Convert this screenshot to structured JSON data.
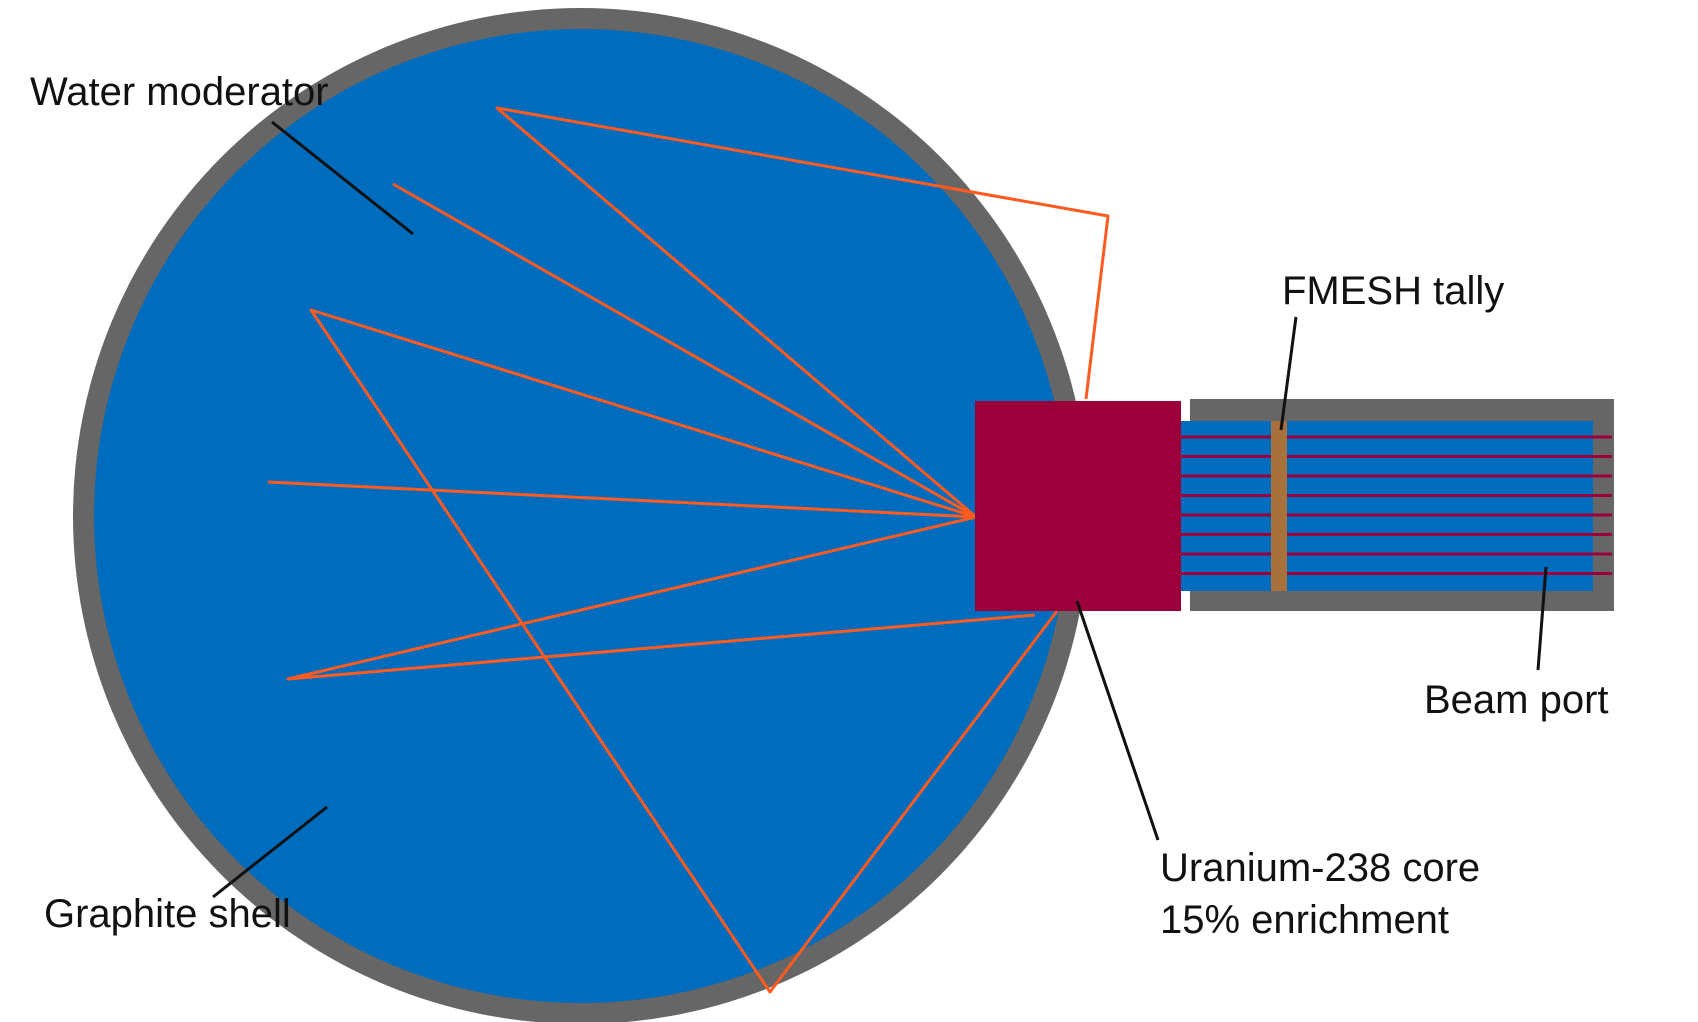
{
  "labels": {
    "water_moderator": "Water moderator",
    "fmesh_tally": "FMESH tally",
    "beam_port": "Beam port",
    "graphite_shell": "Graphite shell",
    "core_line1": "Uranium-238 core",
    "core_line2": "15% enrichment"
  },
  "colors": {
    "shell": "#666666",
    "water": "#006cbd",
    "core": "#9b003b",
    "neutron_path": "#ff5a1f",
    "beam_line": "#9b003b",
    "tally": "#a8703c",
    "leader": "#111111"
  },
  "beam_line_count": 8
}
